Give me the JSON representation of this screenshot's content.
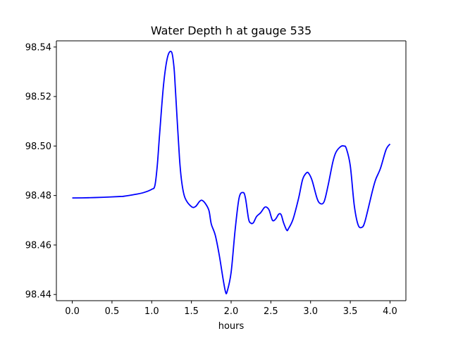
{
  "chart_data": {
    "type": "line",
    "title": "Water Depth h at gauge 535",
    "xlabel": "hours",
    "ylabel": "",
    "xlim": [
      -0.2,
      4.2
    ],
    "ylim": [
      98.4375,
      98.5425
    ],
    "xticks": [
      0.0,
      0.5,
      1.0,
      1.5,
      2.0,
      2.5,
      3.0,
      3.5,
      4.0
    ],
    "xtick_labels": [
      "0.0",
      "0.5",
      "1.0",
      "1.5",
      "2.0",
      "2.5",
      "3.0",
      "3.5",
      "4.0"
    ],
    "yticks": [
      98.44,
      98.46,
      98.48,
      98.5,
      98.52,
      98.54
    ],
    "ytick_labels": [
      "98.44",
      "98.46",
      "98.48",
      "98.50",
      "98.52",
      "98.54"
    ],
    "grid": false,
    "color": "#0000ff",
    "series": [
      {
        "x": [
          0.0,
          0.2,
          0.4,
          0.6,
          0.65,
          0.8,
          0.9,
          1.0,
          1.04,
          1.07,
          1.1,
          1.15,
          1.2,
          1.25,
          1.28,
          1.3,
          1.35,
          1.38,
          1.42,
          1.5,
          1.55,
          1.6,
          1.63,
          1.67,
          1.72,
          1.75,
          1.8,
          1.85,
          1.9,
          1.93,
          1.95,
          2.0,
          2.05,
          2.1,
          2.15,
          2.18,
          2.22,
          2.25,
          2.28,
          2.32,
          2.37,
          2.42,
          2.45,
          2.48,
          2.52,
          2.56,
          2.6,
          2.63,
          2.66,
          2.7,
          2.72,
          2.78,
          2.85,
          2.9,
          2.95,
          2.98,
          3.02,
          3.08,
          3.12,
          3.17,
          3.22,
          3.28,
          3.32,
          3.38,
          3.42,
          3.45,
          3.5,
          3.55,
          3.6,
          3.65,
          3.68,
          3.72,
          3.78,
          3.82,
          3.88,
          3.95,
          4.0
        ],
        "y": [
          98.479,
          98.4791,
          98.4793,
          98.4796,
          98.4797,
          98.4805,
          98.4812,
          98.4825,
          98.484,
          98.492,
          98.505,
          98.525,
          98.536,
          98.538,
          98.532,
          98.522,
          98.495,
          98.485,
          98.479,
          98.4755,
          98.4755,
          98.4775,
          98.4781,
          98.477,
          98.474,
          98.4685,
          98.464,
          98.456,
          98.446,
          98.441,
          98.4412,
          98.449,
          98.466,
          98.479,
          98.4812,
          98.479,
          98.4705,
          98.4688,
          98.469,
          98.4715,
          98.473,
          98.4752,
          98.4752,
          98.474,
          98.47,
          98.4705,
          98.4725,
          98.4722,
          98.469,
          98.466,
          98.4665,
          98.4705,
          98.479,
          98.4865,
          98.4892,
          98.4888,
          98.486,
          98.479,
          98.4768,
          98.4775,
          98.484,
          98.4935,
          98.4975,
          98.4998,
          98.5,
          98.499,
          98.492,
          98.476,
          98.468,
          98.4672,
          98.469,
          98.474,
          98.482,
          98.4865,
          98.491,
          98.4985,
          98.5008
        ]
      }
    ]
  }
}
